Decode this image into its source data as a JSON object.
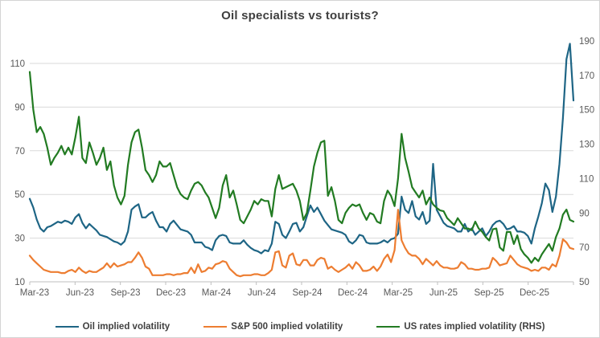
{
  "title": "Oil specialists vs tourists?",
  "colors": {
    "oil_line": "#1e6585",
    "sp500_line": "#ed7d31",
    "rates_line": "#227b22",
    "gridline": "#d9d9d9",
    "axis_line": "#bfbfbf",
    "axis_text": "#595959",
    "title_text": "#3f3f3f"
  },
  "chart_data": {
    "type": "line",
    "title": "Oil specialists vs tourists?",
    "grid": true,
    "legend_position": "bottom",
    "x_tick_labels": [
      "Mar-23",
      "Jun-23",
      "Sep-23",
      "Dec-23",
      "Mar-24",
      "Jun-24",
      "Sep-24",
      "Dec-24",
      "Mar-25",
      "Jun-25",
      "Sep-25",
      "Dec-25"
    ],
    "x_tick_indices": [
      1,
      14,
      27,
      40,
      53,
      66,
      79,
      92,
      105,
      118,
      131,
      144
    ],
    "left_axis": {
      "ticks": [
        110,
        90,
        70,
        50,
        30,
        10
      ],
      "min": 10,
      "max": 110
    },
    "right_axis": {
      "ticks": [
        190,
        170,
        150,
        130,
        110,
        90,
        70,
        50
      ],
      "min": 50,
      "max": 190
    },
    "series": [
      {
        "name": "Oil implied volatility",
        "axis": "left",
        "color": "#1e6585",
        "values": [
          48,
          44,
          38.5,
          34.5,
          33,
          35,
          35.5,
          36.5,
          37.5,
          37,
          38,
          37.5,
          36.5,
          39.5,
          41,
          37,
          34.5,
          36.5,
          35,
          33.5,
          31.5,
          31,
          30.5,
          29.5,
          28.5,
          28,
          27,
          28.5,
          33,
          43,
          44.5,
          45.5,
          39.5,
          39.5,
          41,
          42,
          38,
          35,
          35,
          33,
          36.5,
          38,
          36,
          34,
          33.5,
          33,
          31.5,
          28,
          28,
          28,
          26,
          25.5,
          24.5,
          29,
          31,
          31.5,
          31,
          28,
          27.5,
          27.5,
          27.5,
          29,
          27,
          25.5,
          24.5,
          24,
          23,
          24.5,
          24,
          27.5,
          37.5,
          36.5,
          31.5,
          30,
          33,
          36.5,
          37,
          33,
          35,
          40,
          45,
          42,
          44,
          41,
          38,
          36,
          34,
          33.5,
          33,
          32.5,
          31.5,
          28.5,
          27.5,
          29,
          31.5,
          31,
          28,
          27.5,
          27.5,
          27.5,
          28,
          29,
          28,
          29.5,
          30,
          32,
          49,
          43,
          41.5,
          47,
          40,
          38.5,
          42,
          36.5,
          38,
          64,
          43,
          40,
          37,
          35.5,
          35,
          34.5,
          33,
          33,
          36.5,
          33,
          34.5,
          31.5,
          33,
          34.5,
          31,
          33,
          36,
          37.5,
          38,
          36.5,
          34,
          34.5,
          35.5,
          33,
          33,
          32.5,
          31,
          27.5,
          34.5,
          40,
          46,
          55,
          52,
          42,
          49,
          64,
          85,
          112,
          119,
          93
        ]
      },
      {
        "name": "S&P 500 implied volatility",
        "axis": "left",
        "color": "#ed7d31",
        "values": [
          22,
          20,
          18.5,
          17,
          15.5,
          15,
          14.5,
          14.5,
          14.5,
          14,
          14,
          15,
          15.5,
          14.5,
          16.5,
          15,
          14,
          15,
          14.5,
          14.5,
          15.5,
          16.5,
          18.5,
          16.5,
          18.5,
          17,
          17.5,
          18,
          19,
          19,
          21,
          23.5,
          21,
          17,
          16,
          13,
          13,
          13,
          13,
          13.5,
          13.5,
          13,
          13.5,
          13.5,
          14,
          14,
          16.5,
          14,
          18,
          14.5,
          15,
          16.5,
          16,
          18,
          18.5,
          19.5,
          19,
          16,
          14.5,
          13,
          12.5,
          13,
          13,
          13,
          13.5,
          13.5,
          13,
          13,
          14,
          15.5,
          23.5,
          24,
          17.5,
          16.5,
          22,
          23,
          18,
          17.5,
          20,
          20,
          17.5,
          17.5,
          20,
          21,
          20.5,
          16,
          17,
          15.5,
          14.5,
          15.5,
          16.5,
          18,
          16,
          19,
          17.5,
          15,
          15,
          15.5,
          17,
          15,
          17,
          20.5,
          22.5,
          19,
          24.5,
          43,
          29,
          25.5,
          23,
          22,
          22,
          20.5,
          18,
          20.5,
          19,
          17.5,
          19.5,
          17.5,
          16.5,
          16.5,
          16,
          16,
          16.5,
          19,
          18,
          16,
          16,
          15.5,
          15.5,
          16,
          16,
          16.5,
          21,
          19.5,
          17.5,
          18,
          18.5,
          22,
          20,
          18,
          17,
          16.5,
          16,
          15,
          15.5,
          15,
          16.5,
          16.5,
          15.5,
          18,
          17,
          22,
          29.5,
          28,
          25.5,
          25
        ]
      },
      {
        "name": "US rates implied volatility (RHS)",
        "axis": "right",
        "color": "#227b22",
        "values": [
          172,
          150,
          137,
          140,
          136,
          128,
          118,
          122,
          125,
          129,
          124,
          128,
          124,
          134,
          146,
          122,
          119,
          131,
          125,
          118,
          122,
          128,
          115,
          120,
          106,
          99,
          95,
          100,
          118,
          131,
          137,
          138.5,
          128,
          115,
          112,
          108,
          112,
          120,
          117,
          117,
          119,
          112,
          105,
          101,
          99,
          98,
          103,
          107,
          108,
          106,
          102,
          99,
          93,
          87,
          93,
          106,
          112,
          99,
          103,
          95,
          86,
          84,
          88,
          92,
          97,
          95,
          98,
          97,
          97,
          88,
          104,
          112,
          104,
          105,
          106,
          107,
          103,
          97,
          86,
          90,
          103,
          117,
          125,
          131,
          132,
          100,
          105,
          97,
          86,
          84,
          90,
          93,
          95,
          94,
          95,
          90,
          86,
          90,
          89,
          85,
          84,
          97,
          103,
          100,
          94,
          110,
          136,
          122,
          114,
          105,
          102,
          99,
          103,
          95,
          99,
          95,
          93,
          91.5,
          91,
          87,
          85,
          83,
          87,
          84,
          81,
          81,
          80,
          85,
          81,
          79,
          76,
          74,
          80.5,
          81,
          70,
          68,
          79,
          79,
          72,
          77,
          69,
          66,
          64,
          61,
          64,
          62,
          66,
          69,
          72,
          68,
          76,
          81,
          89,
          92,
          86,
          85
        ]
      }
    ]
  },
  "legend": {
    "items": [
      "Oil implied volatility",
      "S&P 500 implied volatility",
      "US rates implied volatility (RHS)"
    ]
  }
}
